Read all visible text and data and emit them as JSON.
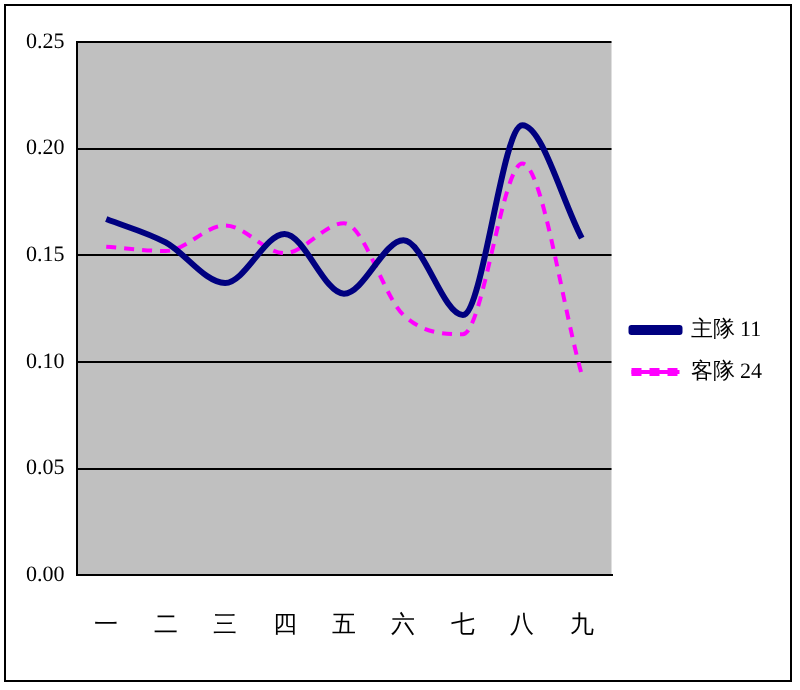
{
  "chart_data": {
    "type": "line",
    "categories": [
      "一",
      "二",
      "三",
      "四",
      "五",
      "六",
      "七",
      "八",
      "九"
    ],
    "series": [
      {
        "name": "主隊 11",
        "color": "#000080",
        "line_style": "solid",
        "values": [
          0.167,
          0.156,
          0.137,
          0.16,
          0.132,
          0.157,
          0.122,
          0.211,
          0.158
        ]
      },
      {
        "name": "客隊 24",
        "color": "#ff00ff",
        "line_style": "dashed",
        "values": [
          0.154,
          0.152,
          0.164,
          0.151,
          0.165,
          0.122,
          0.113,
          0.193,
          0.094
        ]
      }
    ],
    "ylim": [
      0,
      0.25
    ],
    "yticks": [
      {
        "value": 0,
        "label": "0.00"
      },
      0.05,
      {
        "value": 0.1,
        "label": "0.10"
      },
      0.15,
      {
        "value": 0.2,
        "label": "0.20"
      },
      0.25
    ],
    "grid": "y",
    "legend": "right",
    "marker": "none"
  }
}
